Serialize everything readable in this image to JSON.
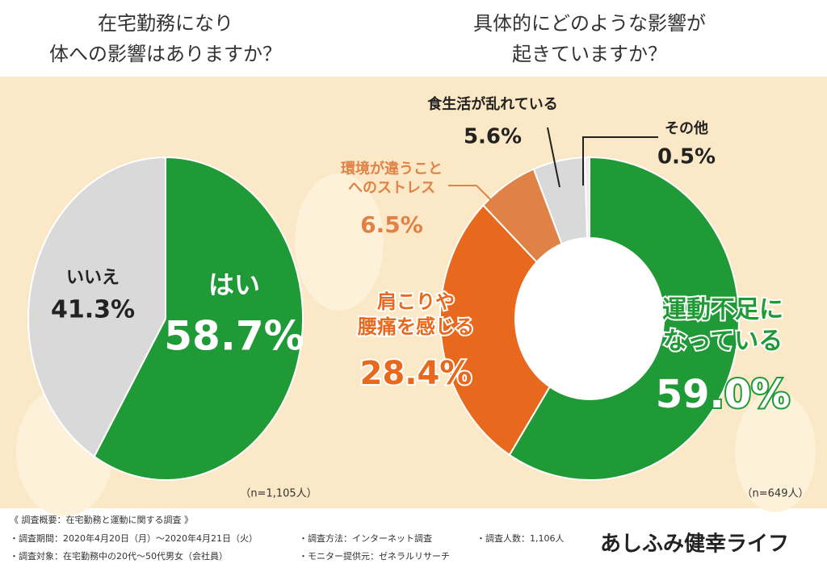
{
  "chart_data": [
    {
      "type": "pie",
      "title": [
        "在宅勤務になり",
        "体への影響はありますか？"
      ],
      "categories": [
        [
          "はい"
        ],
        [
          "いいえ"
        ]
      ],
      "values": [
        58.7,
        41.3
      ],
      "value_labels": [
        "58.7%",
        "41.3%"
      ],
      "colors": [
        "#1f9a36",
        "#d9d9d9"
      ],
      "note": "（n=1,105人）"
    },
    {
      "type": "donut",
      "title": [
        "具体的にどのような影響が",
        "起きていますか？"
      ],
      "categories": [
        [
          "運動不足に",
          "なっている"
        ],
        [
          "肩こりや",
          "腰痛を感じる"
        ],
        [
          "環境が違うこと",
          "へのストレス"
        ],
        [
          "食生活が乱れている"
        ],
        [
          "その他"
        ]
      ],
      "values": [
        59.0,
        28.4,
        6.5,
        5.6,
        0.5
      ],
      "value_labels": [
        "59.0%",
        "28.4%",
        "6.5%",
        "5.6%",
        "0.5%"
      ],
      "colors": [
        "#1f9a36",
        "#e8681d",
        "#e08145",
        "#d9d9d9",
        "#ececec"
      ],
      "note": "（n=649人）"
    }
  ],
  "footer": {
    "heading": "《 調査概要：在宅勤務と運動に関する調査 》",
    "items": [
      "・調査期間：2020年4月20日（月）〜2020年4月21日（火）",
      "・調査方法：インターネット調査",
      "・調査人数：1,106人",
      "・調査対象：在宅勤務中の20代〜50代男女（会社員）",
      "・モニター提供元：ゼネラルリサーチ"
    ],
    "logo": "あしふみ健幸ライフ"
  }
}
